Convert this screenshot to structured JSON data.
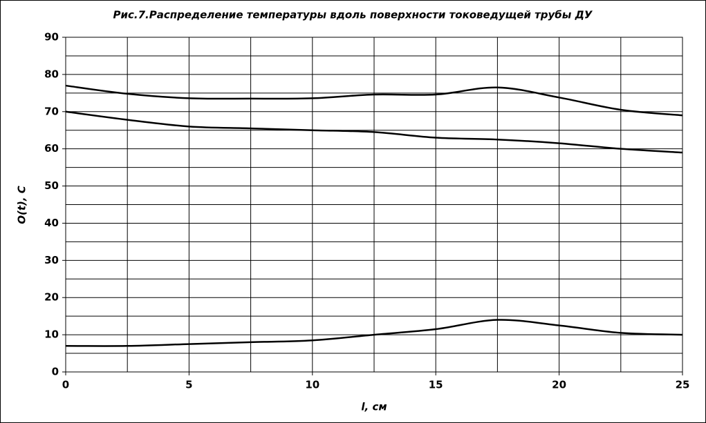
{
  "chart_data": {
    "type": "line",
    "title": "Рис.7.Распределение температуры вдоль поверхности токоведущей трубы ДУ",
    "xlabel": "l, см",
    "ylabel": "O(t), C",
    "x": [
      0,
      2.5,
      5,
      7.5,
      10,
      12.5,
      15,
      17.5,
      20,
      22.5,
      25
    ],
    "series": [
      {
        "color": "#000000",
        "values": [
          77,
          74.8,
          73.6,
          73.5,
          73.6,
          74.6,
          74.6,
          76.5,
          73.8,
          70.5,
          69
        ]
      },
      {
        "color": "#000000",
        "values": [
          70,
          67.8,
          66,
          65.5,
          65,
          64.5,
          63,
          62.5,
          61.5,
          60,
          59
        ]
      },
      {
        "color": "#000000",
        "values": [
          7,
          7,
          7.5,
          8,
          8.5,
          10,
          11.5,
          14,
          12.5,
          10.5,
          10
        ]
      }
    ],
    "xlim": [
      0,
      25
    ],
    "xticks": [
      0,
      5,
      10,
      15,
      20,
      25
    ],
    "ylim": [
      0,
      90
    ],
    "yticks": [
      0,
      10,
      20,
      30,
      40,
      50,
      60,
      70,
      80,
      90
    ],
    "grid": true,
    "minor_grid": true
  }
}
